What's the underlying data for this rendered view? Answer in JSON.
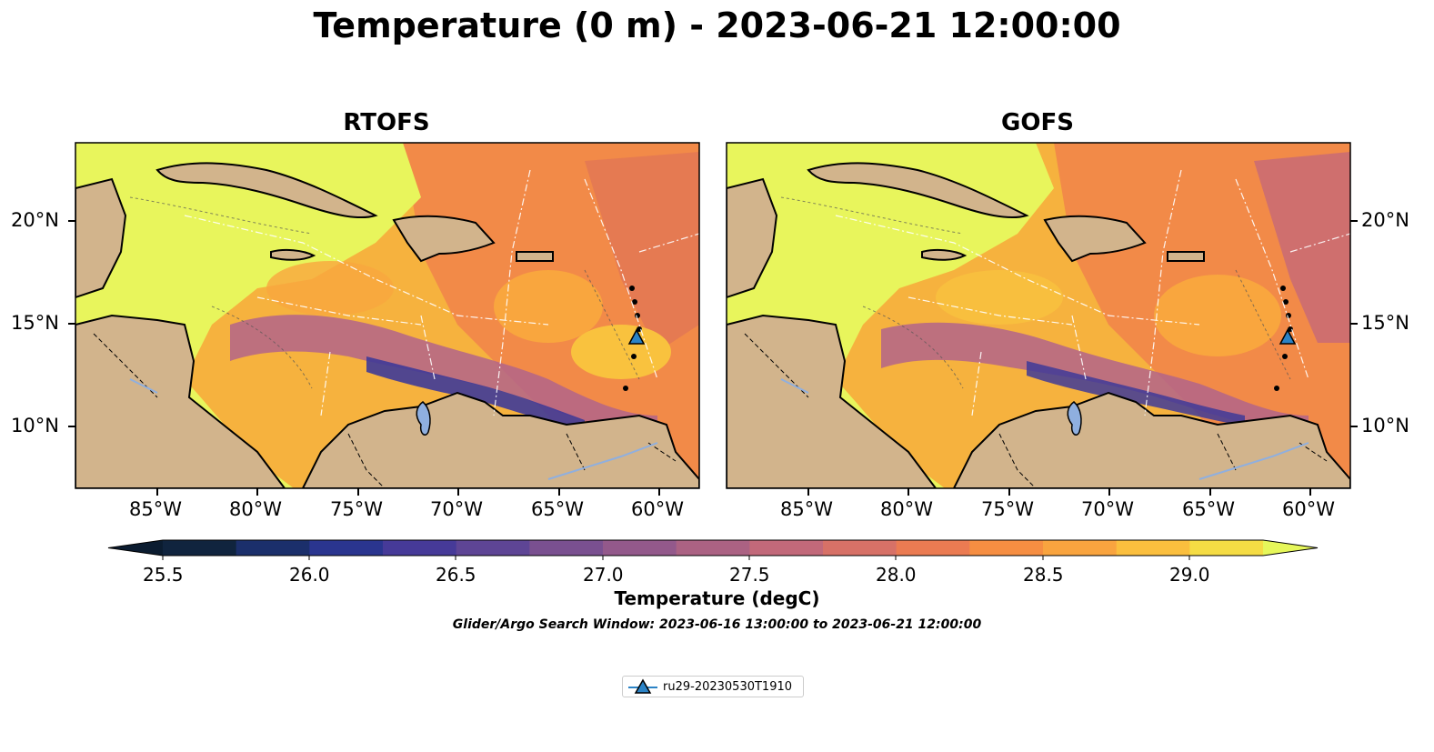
{
  "title": "Temperature (0 m) - 2023-06-21 12:00:00",
  "panels": [
    {
      "name": "rtofs",
      "title": "RTOFS"
    },
    {
      "name": "gofs",
      "title": "GOFS"
    }
  ],
  "lon_ticks": [
    "85°W",
    "80°W",
    "75°W",
    "70°W",
    "65°W",
    "60°W"
  ],
  "lat_ticks": [
    "20°N",
    "15°N",
    "10°N"
  ],
  "colorbar": {
    "label": "Temperature (degC)",
    "ticks": [
      "25.5",
      "26.0",
      "26.5",
      "27.0",
      "27.5",
      "28.0",
      "28.5",
      "29.0"
    ],
    "range": [
      25.5,
      29.25
    ],
    "step": 0.25,
    "colors": [
      "#10243e",
      "#1b2f6b",
      "#2a358f",
      "#463a98",
      "#5e4595",
      "#7a5090",
      "#93598b",
      "#ab6283",
      "#c2697a",
      "#d77167",
      "#eb7b52",
      "#f68e42",
      "#f9a43f",
      "#fbbf3e",
      "#f5dc44"
    ],
    "extend_low": "#0b1c30",
    "extend_high": "#e6f75a"
  },
  "search_window": "Glider/Argo Search Window: 2023-06-16 13:00:00 to 2023-06-21 12:00:00",
  "legend": {
    "label": "ru29-20230530T1910",
    "marker": "triangle-marker",
    "marker_color": "#2b83c6"
  },
  "map_colors": {
    "land": "#d2b48c",
    "lake": "#8fafdf",
    "warm_water": "#e8f55c",
    "mid_water": "#f9a63e",
    "orange_water": "#f28a48",
    "cool_water": "#b3648a",
    "cold_water": "#3f3a98",
    "glider_track": "#ffffff"
  }
}
